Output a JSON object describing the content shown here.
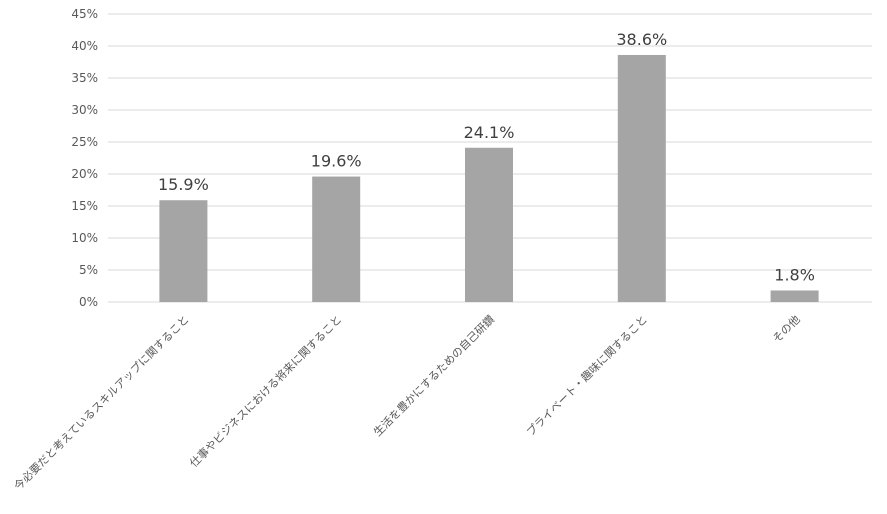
{
  "chart_data": {
    "type": "bar",
    "categories": [
      "今必要だと考えているスキルアップに関すること",
      "仕事やビジネスにおける将来に関すること",
      "生活を豊かにするための自己研鑽",
      "プライベート・趣味に関すること",
      "その他"
    ],
    "values": [
      15.9,
      19.6,
      24.1,
      38.6,
      1.8
    ],
    "data_labels": [
      "15.9%",
      "19.6%",
      "24.1%",
      "38.6%",
      "1.8%"
    ],
    "y_ticks": [
      "0%",
      "5%",
      "10%",
      "15%",
      "20%",
      "25%",
      "30%",
      "35%",
      "40%",
      "45%"
    ],
    "y_tick_values": [
      0,
      5,
      10,
      15,
      20,
      25,
      30,
      35,
      40,
      45
    ],
    "ylim": [
      0,
      45
    ],
    "title": "",
    "xlabel": "",
    "ylabel": "",
    "grid": true,
    "legend": "none",
    "bar_color": "#a5a5a5",
    "grid_color": "#d9d9d9",
    "label_color": "#404040",
    "tick_color": "#595959"
  }
}
